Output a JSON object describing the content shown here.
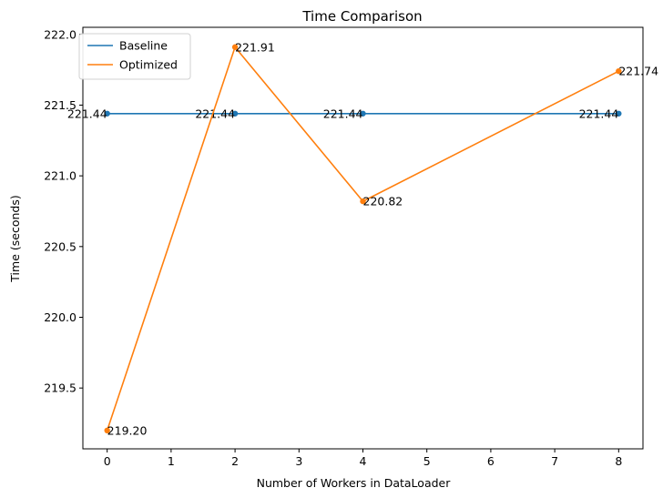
{
  "chart_data": {
    "type": "line",
    "title": "Time Comparison",
    "xlabel": "Number of Workers in DataLoader",
    "ylabel": "Time (seconds)",
    "xlim": [
      -0.38,
      8.38
    ],
    "ylim": [
      219.07,
      222.05
    ],
    "xticks": [
      0,
      1,
      2,
      3,
      4,
      5,
      6,
      7,
      8
    ],
    "xtick_labels": [
      "0",
      "1",
      "2",
      "3",
      "4",
      "5",
      "6",
      "7",
      "8"
    ],
    "yticks": [
      219.5,
      220.0,
      220.5,
      221.0,
      221.5,
      222.0
    ],
    "ytick_labels": [
      "219.5",
      "220.0",
      "220.5",
      "221.0",
      "221.5",
      "222.0"
    ],
    "grid": false,
    "legend_position": "top-left",
    "series": [
      {
        "name": "Baseline",
        "color": "#1f77b4",
        "x": [
          0,
          2,
          4,
          8
        ],
        "y": [
          221.44,
          221.44,
          221.44,
          221.44
        ],
        "labels": [
          "221.44",
          "221.44",
          "221.44",
          "221.44"
        ],
        "label_anchor": "end"
      },
      {
        "name": "Optimized",
        "color": "#ff7f0e",
        "x": [
          0,
          2,
          4,
          8
        ],
        "y": [
          219.2,
          221.91,
          220.82,
          221.74
        ],
        "labels": [
          "219.20",
          "221.91",
          "220.82",
          "221.74"
        ],
        "label_anchor": "start"
      }
    ]
  }
}
